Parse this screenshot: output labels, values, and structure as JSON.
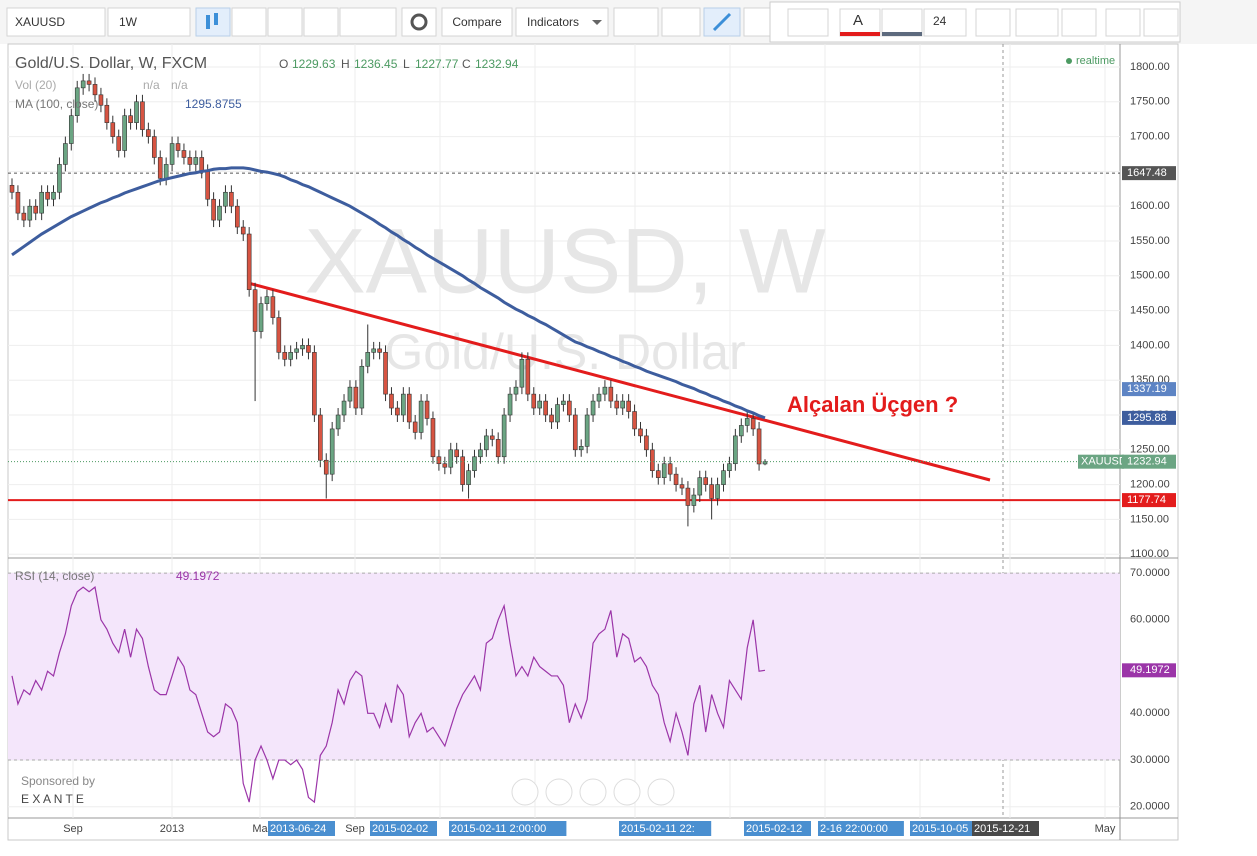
{
  "toolbar": {
    "symbol": "XAUUSD",
    "interval": "1W",
    "compare": "Compare",
    "indicators": "Indicators",
    "text_tool": "A",
    "font_size": "24"
  },
  "sponsor": {
    "label": "Sponsored by",
    "name": "E X A N T E"
  },
  "chart_data": [
    {
      "type": "candlestick",
      "title": "Gold/U.S. Dollar, W, FXCM",
      "ohlc_letters": [
        "O",
        "H",
        "L",
        "C"
      ],
      "watermark": [
        "XAUUSD, W",
        "Gold/U.S. Dollar"
      ],
      "realtime": "realtime",
      "last_tag": "XAUUSD",
      "up_color": "#6ba583",
      "down_color": "#d75442",
      "ylim": [
        1096,
        1833
      ],
      "yticks": [
        {
          "value": 1100,
          "label": "1100.00"
        },
        {
          "value": 1150,
          "label": "1150.00"
        },
        {
          "value": 1200,
          "label": "1200.00"
        },
        {
          "value": 1250,
          "label": "1250.00"
        },
        {
          "value": 1300,
          "label": "1300.00"
        },
        {
          "value": 1350,
          "label": "1350.00"
        },
        {
          "value": 1400,
          "label": "1400.00"
        },
        {
          "value": 1450,
          "label": "1450.00"
        },
        {
          "value": 1500,
          "label": "1500.00"
        },
        {
          "value": 1550,
          "label": "1550.00"
        },
        {
          "value": 1600,
          "label": "1600.00"
        },
        {
          "value": 1650,
          "label": "1650.00"
        },
        {
          "value": 1700,
          "label": "1700.00"
        },
        {
          "value": 1750,
          "label": "1750.00"
        },
        {
          "value": 1800,
          "label": "1800.00"
        }
      ],
      "open": [
        1630,
        1620,
        1590,
        1580,
        1600,
        1590,
        1620,
        1610,
        1620,
        1660,
        1690,
        1730,
        1770,
        1780,
        1775,
        1760,
        1745,
        1720,
        1700,
        1680,
        1730,
        1720,
        1750,
        1710,
        1700,
        1670,
        1640,
        1660,
        1690,
        1680,
        1670,
        1660,
        1670,
        1650,
        1610,
        1580,
        1600,
        1620,
        1600,
        1570,
        1560,
        1480,
        1420,
        1460,
        1470,
        1440,
        1390,
        1380,
        1390,
        1395,
        1400,
        1390,
        1300,
        1235,
        1215,
        1280,
        1300,
        1320,
        1340,
        1310,
        1370,
        1390,
        1395,
        1390,
        1330,
        1310,
        1300,
        1330,
        1290,
        1275,
        1320,
        1295,
        1240,
        1230,
        1225,
        1250,
        1240,
        1200,
        1220,
        1240,
        1250,
        1270,
        1265,
        1240,
        1300,
        1330,
        1340,
        1380,
        1330,
        1310,
        1320,
        1300,
        1290,
        1315,
        1320,
        1300,
        1250,
        1255,
        1300,
        1320,
        1330,
        1340,
        1320,
        1310,
        1320,
        1305,
        1280,
        1270,
        1250,
        1220,
        1210,
        1230,
        1215,
        1200,
        1195,
        1170,
        1185,
        1210,
        1200,
        1180,
        1200,
        1220,
        1230,
        1270,
        1285,
        1295,
        1280,
        1229.63
      ],
      "high": [
        1640,
        1630,
        1600,
        1610,
        1610,
        1630,
        1630,
        1630,
        1670,
        1700,
        1740,
        1780,
        1790,
        1790,
        1785,
        1770,
        1755,
        1730,
        1710,
        1740,
        1740,
        1760,
        1760,
        1720,
        1710,
        1680,
        1670,
        1700,
        1700,
        1690,
        1680,
        1680,
        1680,
        1660,
        1620,
        1610,
        1630,
        1630,
        1610,
        1580,
        1570,
        1490,
        1470,
        1480,
        1480,
        1450,
        1400,
        1400,
        1405,
        1410,
        1410,
        1400,
        1310,
        1245,
        1290,
        1310,
        1330,
        1350,
        1350,
        1380,
        1430,
        1405,
        1405,
        1400,
        1340,
        1320,
        1340,
        1340,
        1300,
        1330,
        1330,
        1305,
        1250,
        1240,
        1260,
        1260,
        1250,
        1230,
        1250,
        1260,
        1280,
        1280,
        1275,
        1310,
        1340,
        1350,
        1390,
        1390,
        1340,
        1330,
        1330,
        1310,
        1325,
        1330,
        1330,
        1310,
        1265,
        1310,
        1330,
        1340,
        1350,
        1350,
        1330,
        1330,
        1330,
        1315,
        1290,
        1280,
        1260,
        1230,
        1240,
        1240,
        1225,
        1210,
        1205,
        1195,
        1220,
        1220,
        1210,
        1210,
        1230,
        1240,
        1280,
        1295,
        1305,
        1305,
        1290,
        1236.45
      ],
      "low": [
        1610,
        1580,
        1570,
        1570,
        1580,
        1580,
        1600,
        1600,
        1610,
        1650,
        1680,
        1720,
        1760,
        1765,
        1750,
        1735,
        1710,
        1690,
        1670,
        1670,
        1710,
        1710,
        1700,
        1690,
        1660,
        1630,
        1630,
        1650,
        1670,
        1660,
        1650,
        1650,
        1640,
        1600,
        1570,
        1570,
        1590,
        1590,
        1560,
        1550,
        1470,
        1320,
        1410,
        1450,
        1430,
        1380,
        1370,
        1370,
        1380,
        1385,
        1380,
        1290,
        1225,
        1180,
        1205,
        1270,
        1290,
        1310,
        1300,
        1300,
        1360,
        1380,
        1380,
        1320,
        1300,
        1290,
        1290,
        1280,
        1265,
        1265,
        1285,
        1230,
        1220,
        1215,
        1215,
        1230,
        1190,
        1180,
        1210,
        1230,
        1240,
        1255,
        1230,
        1230,
        1290,
        1320,
        1330,
        1320,
        1300,
        1300,
        1290,
        1280,
        1280,
        1305,
        1290,
        1240,
        1240,
        1245,
        1290,
        1310,
        1320,
        1310,
        1300,
        1300,
        1295,
        1270,
        1260,
        1240,
        1210,
        1200,
        1200,
        1205,
        1190,
        1185,
        1140,
        1160,
        1175,
        1190,
        1150,
        1170,
        1190,
        1210,
        1220,
        1260,
        1275,
        1270,
        1220,
        1227.77
      ],
      "close": [
        1620,
        1590,
        1580,
        1600,
        1590,
        1620,
        1610,
        1620,
        1660,
        1690,
        1730,
        1770,
        1780,
        1775,
        1760,
        1745,
        1720,
        1700,
        1680,
        1730,
        1720,
        1750,
        1710,
        1700,
        1670,
        1640,
        1660,
        1690,
        1680,
        1670,
        1660,
        1670,
        1650,
        1610,
        1580,
        1600,
        1620,
        1600,
        1570,
        1560,
        1480,
        1420,
        1460,
        1470,
        1440,
        1390,
        1380,
        1390,
        1395,
        1400,
        1390,
        1300,
        1235,
        1215,
        1280,
        1300,
        1320,
        1340,
        1310,
        1370,
        1390,
        1395,
        1390,
        1330,
        1310,
        1300,
        1330,
        1290,
        1275,
        1320,
        1295,
        1240,
        1230,
        1225,
        1250,
        1240,
        1200,
        1220,
        1240,
        1250,
        1270,
        1265,
        1240,
        1300,
        1330,
        1340,
        1380,
        1330,
        1310,
        1320,
        1300,
        1290,
        1315,
        1320,
        1300,
        1250,
        1255,
        1300,
        1320,
        1330,
        1340,
        1320,
        1310,
        1320,
        1305,
        1280,
        1270,
        1250,
        1220,
        1210,
        1230,
        1215,
        1200,
        1195,
        1170,
        1185,
        1210,
        1200,
        1180,
        1200,
        1220,
        1230,
        1270,
        1285,
        1295,
        1280,
        1229.63,
        1232.94
      ],
      "volume": {
        "name": "Vol (20)",
        "readouts": [
          "n/a",
          "n/a"
        ]
      },
      "ma": {
        "name": "MA (100, close)",
        "color": "#3d5d9e",
        "values": [
          1530,
          1536,
          1542,
          1548,
          1554,
          1560,
          1565,
          1570,
          1575,
          1580,
          1585,
          1589,
          1593,
          1597,
          1601,
          1605,
          1608,
          1612,
          1615,
          1619,
          1622,
          1625,
          1628,
          1631,
          1634,
          1637,
          1639,
          1641,
          1643,
          1645,
          1647,
          1648,
          1650,
          1651,
          1653,
          1654,
          1654,
          1655,
          1655,
          1655,
          1654,
          1652,
          1650,
          1649,
          1647,
          1645,
          1642,
          1638,
          1635,
          1631,
          1628,
          1624,
          1620,
          1616,
          1612,
          1608,
          1604,
          1600,
          1595,
          1590,
          1585,
          1580,
          1574,
          1569,
          1563,
          1558,
          1552,
          1547,
          1541,
          1536,
          1530,
          1525,
          1520,
          1515,
          1510,
          1505,
          1500,
          1494,
          1489,
          1483,
          1478,
          1473,
          1468,
          1462,
          1457,
          1452,
          1448,
          1443,
          1439,
          1434,
          1430,
          1425,
          1420,
          1415,
          1410,
          1405,
          1402,
          1398,
          1395,
          1391,
          1388,
          1384,
          1381,
          1377,
          1374,
          1370,
          1367,
          1363,
          1360,
          1357,
          1354,
          1351,
          1348,
          1344,
          1341,
          1338,
          1334,
          1331,
          1327,
          1324,
          1320,
          1317,
          1313,
          1310,
          1306,
          1303,
          1299,
          1295.8755
        ]
      },
      "price_markers": [
        {
          "value": 1647.48,
          "color": "#555555",
          "line": "dashed"
        },
        {
          "value": 1337.19,
          "color": "#5d84c4"
        },
        {
          "value": 1295.8755,
          "label": "1295.88",
          "color": "#3d5d9e"
        },
        {
          "value": 1177.74,
          "color": "#e31c1c",
          "line": "solid"
        }
      ],
      "annotation": "Alçalan Üçgen ?",
      "x_labels": [
        {
          "label": "Sep"
        },
        {
          "label": "2013"
        },
        {
          "label": "Ma"
        },
        {
          "label": "2013-06-24",
          "boxed": true
        },
        {
          "label": "Sep"
        },
        {
          "label": "2015-02-02",
          "boxed": true
        },
        {
          "label": "2015-02-11 2:00:00",
          "boxed": true
        },
        {
          "label": "2015-02-11 22:",
          "boxed": true
        },
        {
          "label": "2015-02-12",
          "boxed": true
        },
        {
          "label": "2-16 22:00:00",
          "boxed": true
        },
        {
          "label": "2015-10-05",
          "boxed": true
        },
        {
          "label": "2015-12-21",
          "boxed": true,
          "dark": true
        },
        {
          "label": "May"
        }
      ]
    },
    {
      "type": "line",
      "name": "RSI (14, close)",
      "color": "#9b35a8",
      "band": [
        30,
        70
      ],
      "band_color": "#f4e6fb",
      "ylim": [
        17.6,
        72.8
      ],
      "yticks": [
        {
          "value": 20,
          "label": "20.0000"
        },
        {
          "value": 30,
          "label": "30.0000"
        },
        {
          "value": 40,
          "label": "40.0000"
        },
        {
          "value": 60,
          "label": "60.0000"
        },
        {
          "value": 70,
          "label": "70.0000"
        }
      ],
      "values": [
        48,
        42,
        45,
        44,
        47,
        45,
        49,
        48,
        53,
        57,
        63,
        66,
        67,
        66,
        67,
        60,
        58,
        55,
        53,
        58,
        52,
        58,
        56,
        50,
        45,
        44,
        44,
        48,
        52,
        50,
        45,
        44,
        40,
        36,
        35,
        36,
        42,
        41,
        38,
        25,
        21,
        30,
        33,
        30,
        26,
        30,
        30,
        29,
        30,
        28,
        22,
        21,
        31,
        33,
        38,
        45,
        42,
        47,
        49,
        48,
        40,
        40,
        37,
        42,
        38,
        46,
        44,
        35,
        38,
        40,
        36,
        37,
        35,
        33,
        37,
        41,
        44,
        46,
        48,
        45,
        55,
        56,
        60,
        63,
        55,
        48,
        50,
        48,
        52,
        50,
        49,
        48,
        48,
        46,
        38,
        42,
        39,
        43,
        55,
        57,
        58,
        62,
        52,
        57,
        56,
        51,
        52,
        50,
        46,
        44,
        38,
        34,
        40,
        36,
        31,
        42,
        46,
        36,
        44,
        40,
        37,
        47,
        45,
        43,
        54,
        60,
        49,
        49.1972
      ]
    }
  ]
}
